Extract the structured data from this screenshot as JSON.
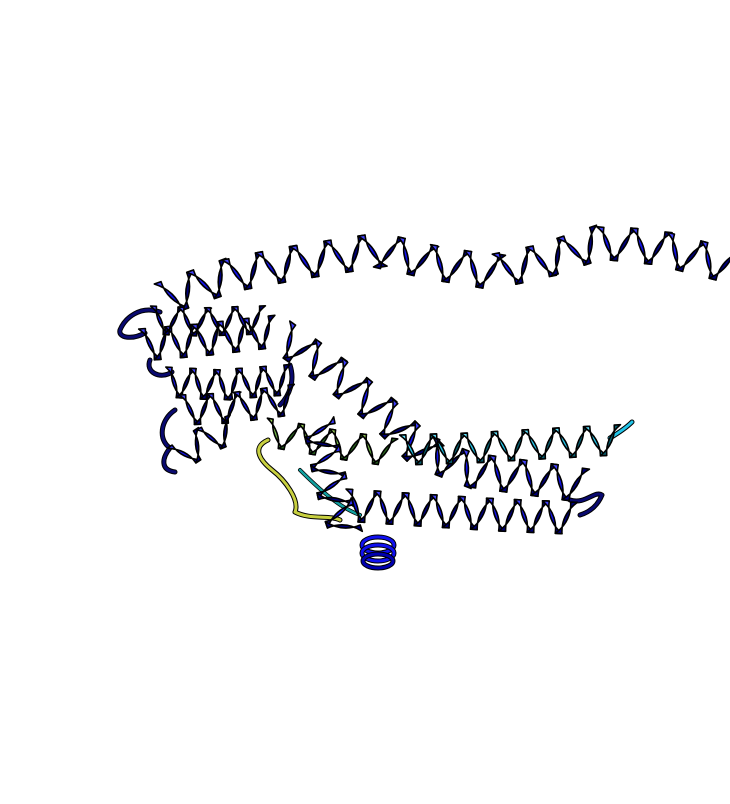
{
  "scene": {
    "background": "#ffffff",
    "colors": {
      "helix_dark": "#0000d0",
      "helix_mid": "#1010f0",
      "helix_light": "#3a3aff",
      "outline": "#000000",
      "cyan_light": "#3ad8f0",
      "cyan_dark": "#11a0c0",
      "teal": "#20c0a0",
      "green": "#70c040",
      "yellowgreen": "#b8d040",
      "loop_navy": "#0a0a70"
    }
  }
}
